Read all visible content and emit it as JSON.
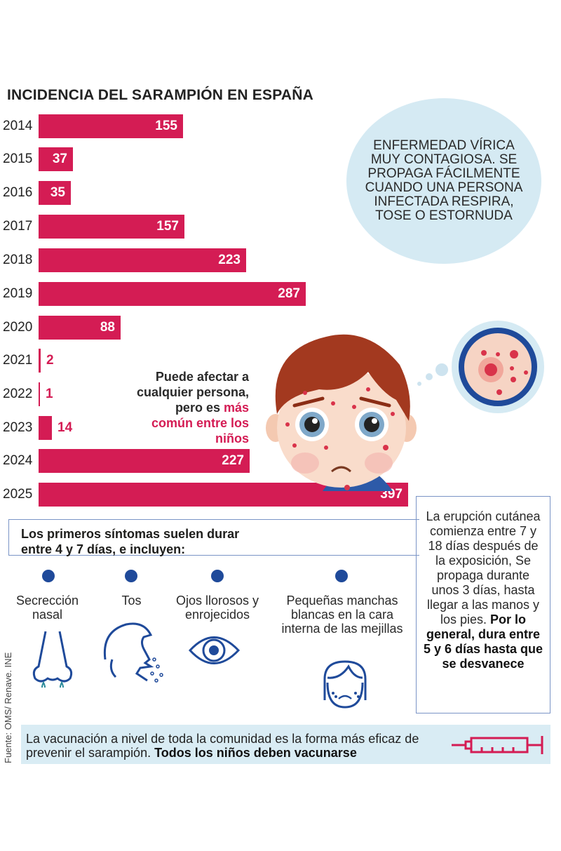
{
  "title": "INCIDENCIA DEL SARAMPIÓN EN ESPAÑA",
  "colors": {
    "bar": "#d41c54",
    "accent_blue": "#1f4a9a",
    "light_blue": "#d5eaf3"
  },
  "chart_data": {
    "type": "bar",
    "orientation": "horizontal",
    "title": "INCIDENCIA DEL SARAMPIÓN EN ESPAÑA",
    "categories": [
      "2014",
      "2015",
      "2016",
      "2017",
      "2018",
      "2019",
      "2020",
      "2021",
      "2022",
      "2023",
      "2024",
      "2025"
    ],
    "values": [
      155,
      37,
      35,
      157,
      223,
      287,
      88,
      2,
      1,
      14,
      227,
      397
    ],
    "xlabel": "",
    "ylabel": "",
    "grid": false
  },
  "bars": [
    {
      "year": "2014",
      "value": "155"
    },
    {
      "year": "2015",
      "value": "37"
    },
    {
      "year": "2016",
      "value": "35"
    },
    {
      "year": "2017",
      "value": "157"
    },
    {
      "year": "2018",
      "value": "223"
    },
    {
      "year": "2019",
      "value": "287"
    },
    {
      "year": "2020",
      "value": "88"
    },
    {
      "year": "2021",
      "value": "2"
    },
    {
      "year": "2022",
      "value": "1"
    },
    {
      "year": "2023",
      "value": "14"
    },
    {
      "year": "2024",
      "value": "227"
    },
    {
      "year": "2025",
      "value": "397"
    }
  ],
  "info_circle": "ENFERMEDAD VÍRICA MUY CONTAGIOSA. SE PROPAGA FÁCILMENTE CUANDO UNA PERSONA INFECTADA RESPIRA, TOSE O ESTORNUDA",
  "affect": {
    "part1": "Puede afectar a cualquier persona, pero es ",
    "highlight": "más común entre los niños"
  },
  "symptoms": {
    "heading": "Los primeros síntomas suelen durar entre 4 y 7 días, e incluyen:",
    "items": [
      {
        "label": "Secrección nasal",
        "icon": "nose-icon"
      },
      {
        "label": "Tos",
        "icon": "cough-icon"
      },
      {
        "label": "Ojos llorosos y enrojecidos",
        "icon": "eye-icon"
      },
      {
        "label": "Pequeñas manchas blancas en la cara interna de las mejillas",
        "icon": "sad-face-icon"
      }
    ]
  },
  "rash": {
    "text": "La erupción cutánea comienza entre 7 y 18 días después de la exposición, Se propaga durante unos 3 días, hasta llegar a las manos y los pies. ",
    "bold": "Por lo general, dura entre 5 y 6 días hasta que se desvanece"
  },
  "vaccination": {
    "text": "La vacunación a nivel de toda la comunidad es la forma más eficaz de prevenir el sarampión. ",
    "bold": "Todos los niños deben vacunarse"
  },
  "source": "Fuente: OMS/ Renave. INE"
}
